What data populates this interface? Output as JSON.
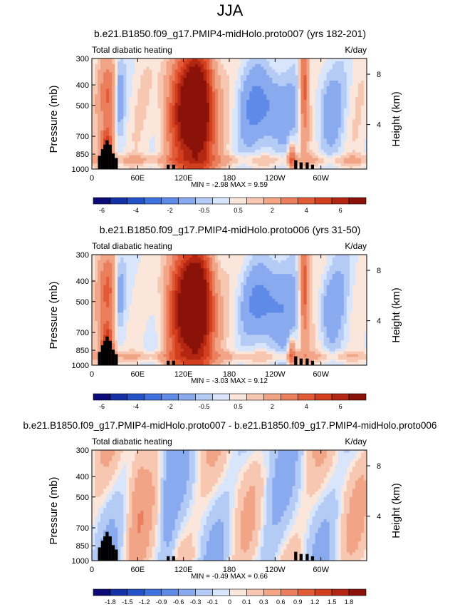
{
  "page": {
    "title": "JJA"
  },
  "colorbar_colors_absolute": [
    "#0a0a78",
    "#1531a8",
    "#2453c9",
    "#3f70e0",
    "#5e8ae8",
    "#8aaaf0",
    "#b4cbf5",
    "#d8e5fa",
    "#fbe6dc",
    "#f7c7b2",
    "#f2a486",
    "#eb7e5c",
    "#e35b36",
    "#d23e1e",
    "#b32612",
    "#8a1208"
  ],
  "colorbar_colors_difference": [
    "#0a0a78",
    "#1531a8",
    "#2453c9",
    "#3f70e0",
    "#5e8ae8",
    "#8aaaf0",
    "#b4cbf5",
    "#d8e5fa",
    "#fbe6dc",
    "#f7c7b2",
    "#f2a486",
    "#eb7e5c",
    "#e35b36",
    "#d23e1e",
    "#b32612",
    "#8a1208"
  ],
  "chart_data": [
    {
      "type": "heatmap",
      "title": "b.e21.B1850.f09_g17.PMIP4-midHolo.proto007 (yrs 182-201)",
      "left_label": "Total diabatic heating",
      "units": "K/day",
      "ylabel": "Pressure (mb)",
      "ylabel_right": "Height (km)",
      "x_ticks": [
        "0",
        "60E",
        "120E",
        "180",
        "120W",
        "60W"
      ],
      "y_ticks": [
        "300",
        "400",
        "500",
        "700",
        "850",
        "1000"
      ],
      "y_ticks_right": [
        "8",
        "4"
      ],
      "stats": "MIN = -2.98  MAX =  9.59",
      "colorbar_labels": [
        "-6",
        "-4",
        "-2",
        "-0.5",
        "0.5",
        "2",
        "4",
        "6"
      ],
      "field_variant": 0
    },
    {
      "type": "heatmap",
      "title": "b.e21.B1850.f09_g17.PMIP4-midHolo.proto006 (yrs 31-50)",
      "left_label": "Total diabatic heating",
      "units": "K/day",
      "ylabel": "Pressure (mb)",
      "ylabel_right": "Height (km)",
      "x_ticks": [
        "0",
        "60E",
        "120E",
        "180",
        "120W",
        "60W"
      ],
      "y_ticks": [
        "300",
        "400",
        "500",
        "700",
        "850",
        "1000"
      ],
      "y_ticks_right": [
        "8",
        "4"
      ],
      "stats": "MIN = -3.03  MAX =  9.12",
      "colorbar_labels": [
        "-6",
        "-4",
        "-2",
        "-0.5",
        "0.5",
        "2",
        "4",
        "6"
      ],
      "field_variant": 1
    },
    {
      "type": "heatmap",
      "title": "b.e21.B1850.f09_g17.PMIP4-midHolo.proto007 - b.e21.B1850.f09_g17.PMIP4-midHolo.proto006",
      "left_label": "Total diabatic heating",
      "units": "K/day",
      "ylabel": "Pressure (mb)",
      "ylabel_right": "Height (km)",
      "x_ticks": [
        "0",
        "60E",
        "120E",
        "180",
        "120W",
        "60W"
      ],
      "y_ticks": [
        "300",
        "400",
        "500",
        "700",
        "850",
        "1000"
      ],
      "y_ticks_right": [
        "8",
        "4"
      ],
      "stats": "MIN = -0.49  MAX =  0.66",
      "colorbar_labels": [
        "-1.8",
        "-1.5",
        "-1.2",
        "-0.9",
        "-0.6",
        "-0.3",
        "-0.1",
        "0",
        "0.1",
        "0.3",
        "0.6",
        "0.9",
        "1.2",
        "1.5",
        "1.8"
      ],
      "field_variant": 2
    }
  ]
}
